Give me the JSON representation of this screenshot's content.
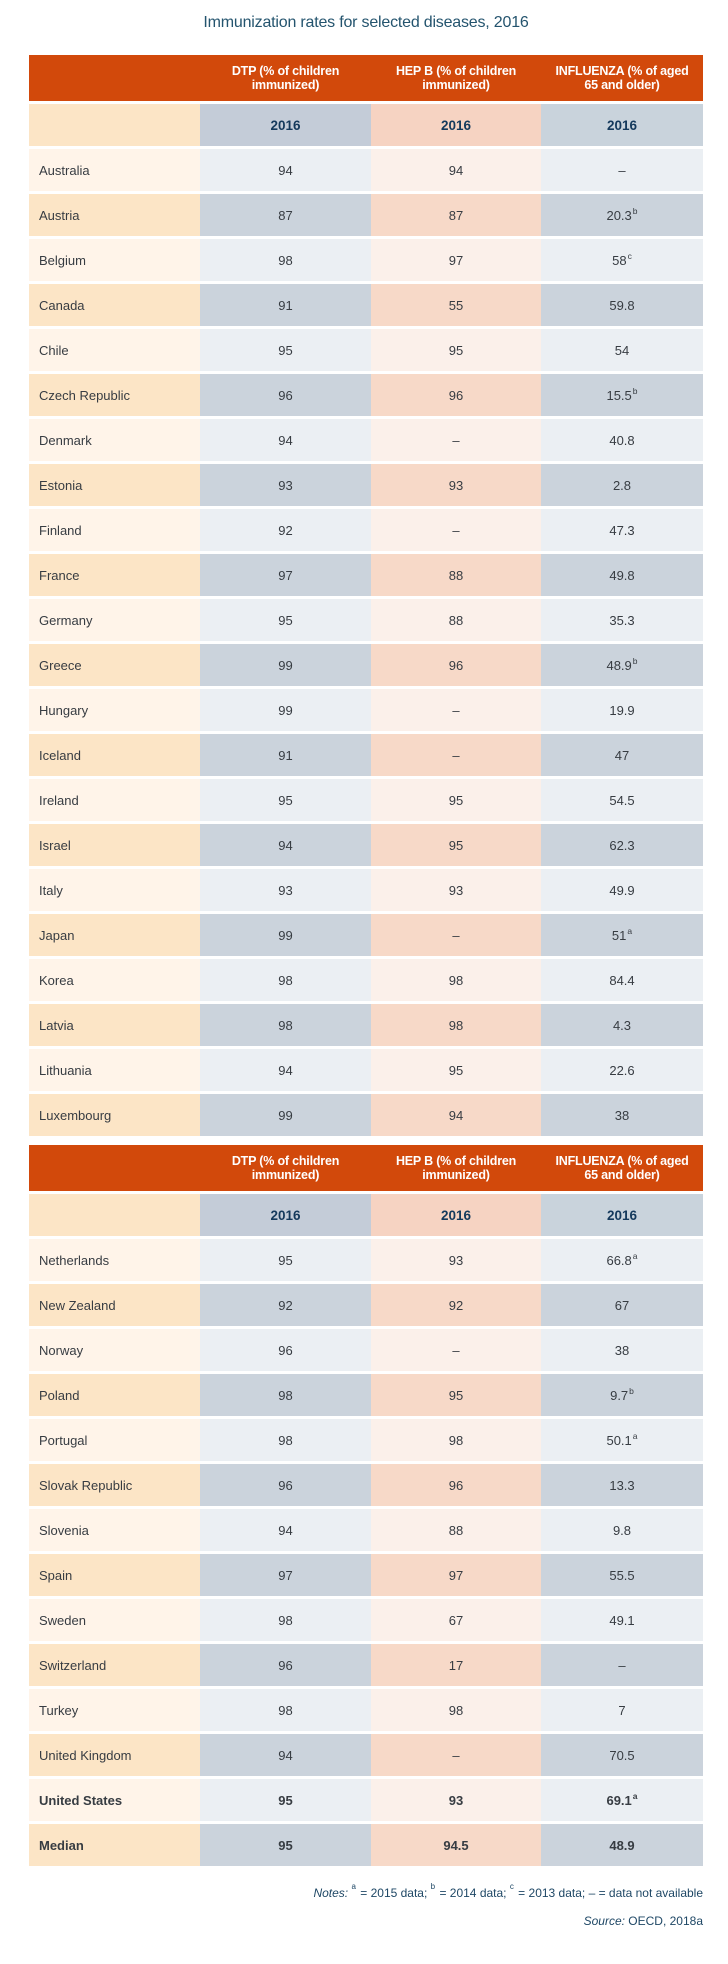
{
  "title": "Immunization rates for selected diseases, 2016",
  "table": {
    "col_headers": [
      "DTP (% of children immunized)",
      "HEP B (% of children immunized)",
      "INFLUENZA (% of aged 65 and older)"
    ],
    "year_label": "2016",
    "sections": [
      {
        "rows": [
          {
            "country": "Australia",
            "dtp": "94",
            "hepb": "94",
            "flu": "–",
            "flu_sup": "",
            "bold": false
          },
          {
            "country": "Austria",
            "dtp": "87",
            "hepb": "87",
            "flu": "20.3",
            "flu_sup": "b",
            "bold": false
          },
          {
            "country": "Belgium",
            "dtp": "98",
            "hepb": "97",
            "flu": "58",
            "flu_sup": "c",
            "bold": false
          },
          {
            "country": "Canada",
            "dtp": "91",
            "hepb": "55",
            "flu": "59.8",
            "flu_sup": "",
            "bold": false
          },
          {
            "country": "Chile",
            "dtp": "95",
            "hepb": "95",
            "flu": "54",
            "flu_sup": "",
            "bold": false
          },
          {
            "country": "Czech Republic",
            "dtp": "96",
            "hepb": "96",
            "flu": "15.5",
            "flu_sup": "b",
            "bold": false
          },
          {
            "country": "Denmark",
            "dtp": "94",
            "hepb": "–",
            "flu": "40.8",
            "flu_sup": "",
            "bold": false
          },
          {
            "country": "Estonia",
            "dtp": "93",
            "hepb": "93",
            "flu": "2.8",
            "flu_sup": "",
            "bold": false
          },
          {
            "country": "Finland",
            "dtp": "92",
            "hepb": "–",
            "flu": "47.3",
            "flu_sup": "",
            "bold": false
          },
          {
            "country": "France",
            "dtp": "97",
            "hepb": "88",
            "flu": "49.8",
            "flu_sup": "",
            "bold": false
          },
          {
            "country": "Germany",
            "dtp": "95",
            "hepb": "88",
            "flu": "35.3",
            "flu_sup": "",
            "bold": false
          },
          {
            "country": "Greece",
            "dtp": "99",
            "hepb": "96",
            "flu": "48.9",
            "flu_sup": "b",
            "bold": false
          },
          {
            "country": "Hungary",
            "dtp": "99",
            "hepb": "–",
            "flu": "19.9",
            "flu_sup": "",
            "bold": false
          },
          {
            "country": "Iceland",
            "dtp": "91",
            "hepb": "–",
            "flu": "47",
            "flu_sup": "",
            "bold": false
          },
          {
            "country": "Ireland",
            "dtp": "95",
            "hepb": "95",
            "flu": "54.5",
            "flu_sup": "",
            "bold": false
          },
          {
            "country": "Israel",
            "dtp": "94",
            "hepb": "95",
            "flu": "62.3",
            "flu_sup": "",
            "bold": false
          },
          {
            "country": "Italy",
            "dtp": "93",
            "hepb": "93",
            "flu": "49.9",
            "flu_sup": "",
            "bold": false
          },
          {
            "country": "Japan",
            "dtp": "99",
            "hepb": "–",
            "flu": "51",
            "flu_sup": "a",
            "bold": false
          },
          {
            "country": "Korea",
            "dtp": "98",
            "hepb": "98",
            "flu": "84.4",
            "flu_sup": "",
            "bold": false
          },
          {
            "country": "Latvia",
            "dtp": "98",
            "hepb": "98",
            "flu": "4.3",
            "flu_sup": "",
            "bold": false
          },
          {
            "country": "Lithuania",
            "dtp": "94",
            "hepb": "95",
            "flu": "22.6",
            "flu_sup": "",
            "bold": false
          },
          {
            "country": "Luxembourg",
            "dtp": "99",
            "hepb": "94",
            "flu": "38",
            "flu_sup": "",
            "bold": false
          }
        ]
      },
      {
        "rows": [
          {
            "country": "Netherlands",
            "dtp": "95",
            "hepb": "93",
            "flu": "66.8",
            "flu_sup": "a",
            "bold": false
          },
          {
            "country": "New Zealand",
            "dtp": "92",
            "hepb": "92",
            "flu": "67",
            "flu_sup": "",
            "bold": false
          },
          {
            "country": "Norway",
            "dtp": "96",
            "hepb": "–",
            "flu": "38",
            "flu_sup": "",
            "bold": false
          },
          {
            "country": "Poland",
            "dtp": "98",
            "hepb": "95",
            "flu": "9.7",
            "flu_sup": "b",
            "bold": false
          },
          {
            "country": "Portugal",
            "dtp": "98",
            "hepb": "98",
            "flu": "50.1",
            "flu_sup": "a",
            "bold": false
          },
          {
            "country": "Slovak Republic",
            "dtp": "96",
            "hepb": "96",
            "flu": "13.3",
            "flu_sup": "",
            "bold": false
          },
          {
            "country": "Slovenia",
            "dtp": "94",
            "hepb": "88",
            "flu": "9.8",
            "flu_sup": "",
            "bold": false
          },
          {
            "country": "Spain",
            "dtp": "97",
            "hepb": "97",
            "flu": "55.5",
            "flu_sup": "",
            "bold": false
          },
          {
            "country": "Sweden",
            "dtp": "98",
            "hepb": "67",
            "flu": "49.1",
            "flu_sup": "",
            "bold": false
          },
          {
            "country": "Switzerland",
            "dtp": "96",
            "hepb": "17",
            "flu": "–",
            "flu_sup": "",
            "bold": false
          },
          {
            "country": "Turkey",
            "dtp": "98",
            "hepb": "98",
            "flu": "7",
            "flu_sup": "",
            "bold": false
          },
          {
            "country": "United Kingdom",
            "dtp": "94",
            "hepb": "–",
            "flu": "70.5",
            "flu_sup": "",
            "bold": false
          },
          {
            "country": "United States",
            "dtp": "95",
            "hepb": "93",
            "flu": "69.1",
            "flu_sup": "a",
            "bold": true
          },
          {
            "country": "Median",
            "dtp": "95",
            "hepb": "94.5",
            "flu": "48.9",
            "flu_sup": "",
            "bold": true
          }
        ]
      }
    ]
  },
  "footer": {
    "notes_label": "Notes:",
    "notes_segments": [
      {
        "sup": "a",
        "text": " = 2015 data; "
      },
      {
        "sup": "b",
        "text": " = 2014 data; "
      },
      {
        "sup": "c",
        "text": " = 2013 data; "
      },
      {
        "sup": "",
        "text": "– = data not available"
      }
    ],
    "source_label": "Source:",
    "source_text": " OECD, 2018a"
  },
  "colors": {
    "header_bg": "#D2490B",
    "header_text": "#FFFFFF",
    "title_text": "#24546E",
    "year_text": "#14395C",
    "notes_text": "#1E4765",
    "country_light": "#FFF4E9",
    "country_dark": "#FCE5C6",
    "gray_light": "#EBEFF3",
    "gray_dark": "#CBD3DC",
    "pink_light": "#FBF0EA",
    "pink_dark": "#F7D9C8"
  }
}
